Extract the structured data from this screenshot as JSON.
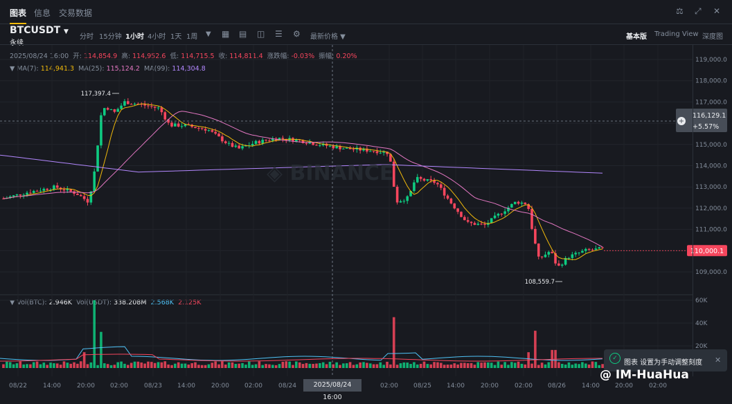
{
  "tabs": [
    {
      "label": "图表",
      "active": true
    },
    {
      "label": "信息",
      "active": false
    },
    {
      "label": "交易数据",
      "active": false
    }
  ],
  "window_icons": [
    "bell-icon",
    "expand-icon",
    "close-icon"
  ],
  "symbol": {
    "name": "BTCUSDT",
    "type": "永续"
  },
  "toolbar": {
    "intervals": [
      "分时",
      "15分钟",
      "1小时",
      "4小时",
      "1天",
      "1周"
    ],
    "active_interval": "1小时",
    "price_mode": "最新价格",
    "views": [
      "基本版",
      "Trading View",
      "深度图"
    ],
    "active_view": "基本版"
  },
  "ohlc": {
    "date": "2025/08/24 16:00",
    "open_label": "开:",
    "open": "114,854.9",
    "high_label": "高:",
    "high": "114,952.6",
    "low_label": "低:",
    "low": "114,715.5",
    "close_label": "收:",
    "close": "114,811.4",
    "change_label": "涨跌幅:",
    "change": "-0.03%",
    "amp_label": "振幅:",
    "amp": "0.20%"
  },
  "ma": {
    "ma7_label": "MA(7):",
    "ma7": "114,941.3",
    "ma25_label": "MA(25):",
    "ma25": "115,124.2",
    "ma99_label": "MA(99):",
    "ma99": "114,304.8"
  },
  "volume": {
    "vol_btc_label": "Vol(BTC):",
    "vol_btc": "2.946K",
    "vol_usdt_label": "Vol(USDT):",
    "vol_usdt": "338.208M",
    "v1": "2.568K",
    "v2": "2.125K"
  },
  "price_axis": [
    "119,000.0",
    "118,000.0",
    "117,000.0",
    "116,000.0",
    "115,000.0",
    "114,000.0",
    "113,000.0",
    "112,000.0",
    "111,000.0",
    "110,000.0",
    "109,000.0"
  ],
  "volume_axis": [
    "60K",
    "40K",
    "20K"
  ],
  "crosshair": {
    "price": "116,129.1",
    "change": "+5.57%",
    "time": "2025/08/24 16:00"
  },
  "last_price": "110,000.1",
  "annotations": {
    "high": "117,397.4",
    "low": "108,559.7"
  },
  "time_axis": [
    "08/22",
    "14:00",
    "20:00",
    "02:00",
    "08/23",
    "14:00",
    "20:00",
    "02:00",
    "08/24",
    "02:00",
    "08/25",
    "14:00",
    "20:00",
    "02:00",
    "08/26",
    "14:00",
    "20:00",
    "02:00"
  ],
  "toast": {
    "text": "图表 设置为手动调整刻度"
  },
  "watermark": "@ IM-HuaHua",
  "colors": {
    "up": "#0ecb81",
    "down": "#f6465d",
    "ma7": "#f0b90b",
    "ma25": "#e377c2",
    "ma99": "#b388ff",
    "bg": "#181a20"
  }
}
